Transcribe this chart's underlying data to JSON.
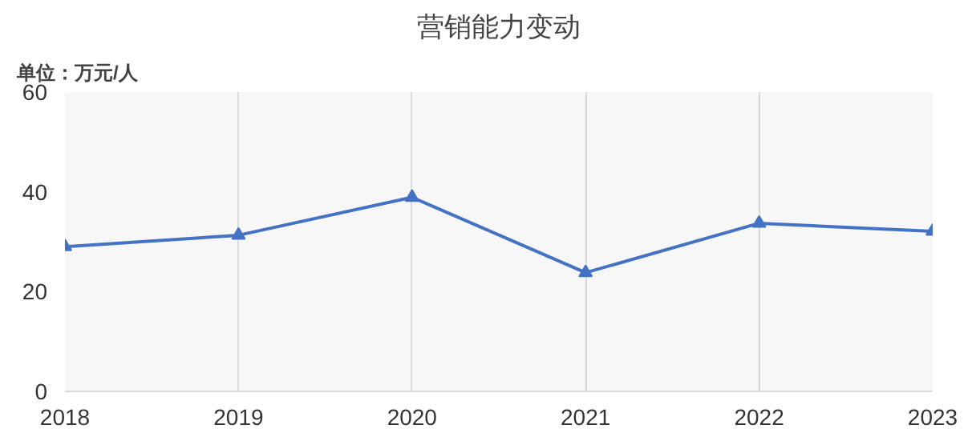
{
  "chart_data": {
    "type": "line",
    "title": "营销能力变动",
    "ylabel": "单位：万元/人",
    "categories": [
      "2018",
      "2019",
      "2020",
      "2021",
      "2022",
      "2023"
    ],
    "series": [
      {
        "color": "#4472c4",
        "values": [
          29,
          31.3,
          38.9,
          23.8,
          33.7,
          32.1
        ]
      }
    ],
    "ylim": [
      0,
      60
    ],
    "yticks": [
      0,
      20,
      40,
      60
    ],
    "grid": "x",
    "marker": "triangle",
    "line_style": "solid"
  }
}
